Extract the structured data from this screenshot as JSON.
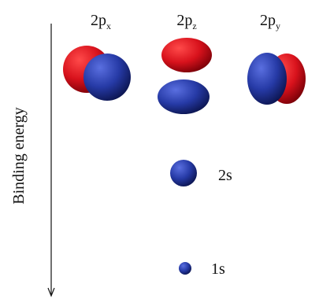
{
  "axis": {
    "label": "Binding energy"
  },
  "orbitals": [
    {
      "label": "2p",
      "subscript": "x"
    },
    {
      "label": "2p",
      "subscript": "z"
    },
    {
      "label": "2p",
      "subscript": "y"
    },
    {
      "label": "2s"
    },
    {
      "label": "1s"
    }
  ]
}
